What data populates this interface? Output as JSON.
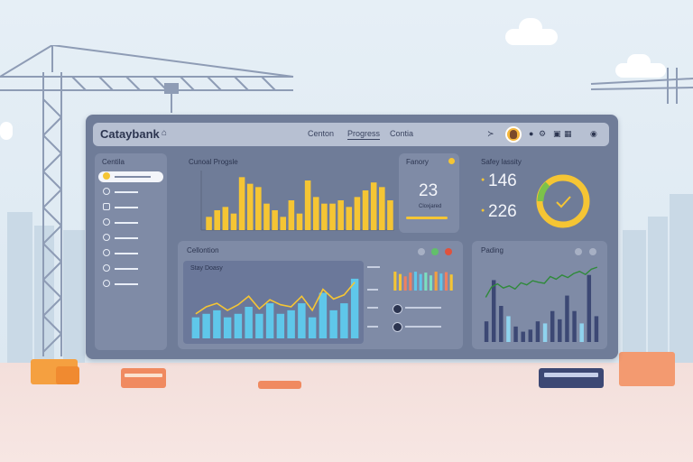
{
  "app": {
    "title": "Cataybank"
  },
  "nav": {
    "items": [
      "Centon",
      "Progress",
      "Contia"
    ],
    "active_index": 1
  },
  "sidebar": {
    "title": "Centila",
    "items": [
      {
        "icon": "circle-icon"
      },
      {
        "icon": "clock-icon"
      },
      {
        "icon": "box-icon"
      },
      {
        "icon": "pulse-icon"
      },
      {
        "icon": "circle-icon"
      },
      {
        "icon": "circle-icon"
      },
      {
        "icon": "circle-icon"
      },
      {
        "icon": "circle-icon"
      }
    ],
    "active_index": 0
  },
  "panels": {
    "progress": {
      "title": "Cunoal Progsle"
    },
    "summary": {
      "title": "Fanory",
      "value": "23",
      "sub": "Cloxjared"
    },
    "safety": {
      "title": "Safey lassity",
      "value1": "146",
      "value2": "226",
      "gauge_fraction": 0.9
    },
    "collections": {
      "title": "Cellontion",
      "inner_title": "Stay Doasy"
    },
    "pending": {
      "title": "Pading"
    }
  },
  "colors": {
    "accent": "#f5c534",
    "window": "#6f7c98",
    "panel": "#7f8ba6",
    "bar_blue": "#5fc7ea",
    "line_green": "#2f8a3a"
  },
  "chart_data": [
    {
      "type": "bar",
      "values": [
        2,
        3,
        3.5,
        2.5,
        8,
        7,
        6.5,
        4,
        3,
        2,
        4.5,
        2.5,
        7.5,
        5,
        4,
        4,
        4.5,
        3.5,
        5,
        6,
        7.2,
        6.5,
        4.5
      ]
    },
    {
      "type": "bar",
      "values": [
        3,
        3.5,
        4,
        3,
        3.5,
        4.5,
        3.5,
        5,
        3.5,
        4,
        5,
        3,
        6.5,
        4,
        5,
        8.5
      ],
      "line": [
        3.5,
        4.5,
        5,
        4,
        4.8,
        6,
        4.2,
        5.5,
        4.8,
        4.5,
        6,
        4,
        7,
        5.6,
        6.2,
        8
      ]
    },
    {
      "type": "bar",
      "values": [
        4,
        3.5,
        3,
        3.8,
        4,
        3.5,
        3.8,
        3.2,
        4,
        3.6,
        3.9,
        3.4
      ],
      "colors": [
        "#f5c534",
        "#f5c534",
        "#f08060",
        "#f08060",
        "#5fc7ea",
        "#5fc7ea",
        "#7be0c0",
        "#7be0c0",
        "#f5a040",
        "#5fc7ea",
        "#f08060",
        "#f5c534"
      ]
    },
    {
      "type": "line",
      "values": [
        2,
        4,
        4.6,
        3.8,
        4.2,
        3.6,
        4.8,
        4.4,
        5.2,
        4.9,
        4.7,
        6,
        5.5,
        6.3,
        5.8,
        6.6,
        7,
        6.4,
        7.4,
        7.8
      ]
    },
    {
      "type": "bar",
      "values": [
        2,
        6,
        3.5,
        2.5,
        1.5,
        1,
        1.2,
        2,
        1.8,
        3,
        2.2,
        4.5,
        3,
        1.8,
        6.5,
        2.5
      ]
    }
  ]
}
